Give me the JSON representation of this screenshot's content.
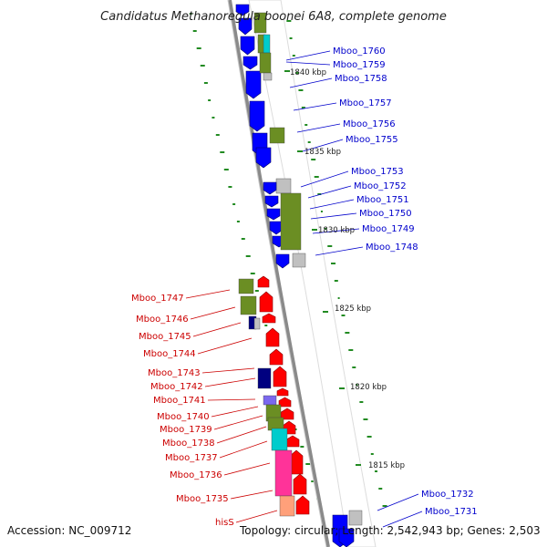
{
  "title": "Candidatus Methanoregula boonei 6A8, complete genome",
  "footer": {
    "accession": "Accession: NC_009712",
    "summary": "Topology: circular; Length: 2,542,943 bp; Genes: 2,503"
  },
  "colors": {
    "forward_cds": "#0000ff",
    "reverse_cds": "#ff0000",
    "olive_feature": "#6b8e23",
    "cyan_feature": "#00cccc",
    "pink_feature": "#ff3399",
    "gray_feature": "#c0c0c0",
    "navy_feature": "#000080",
    "gc_skew_dash": "#228b22",
    "backbone": "#888888"
  },
  "kbp_markers": [
    "1840 kbp",
    "1835 kbp",
    "1830 kbp",
    "1825 kbp",
    "1820 kbp",
    "1815 kbp"
  ],
  "forward_genes": [
    "Mboo_1760",
    "Mboo_1759",
    "Mboo_1758",
    "Mboo_1757",
    "Mboo_1756",
    "Mboo_1755",
    "Mboo_1753",
    "Mboo_1752",
    "Mboo_1751",
    "Mboo_1750",
    "Mboo_1749",
    "Mboo_1748",
    "Mboo_1732",
    "Mboo_1731"
  ],
  "reverse_genes": [
    "Mboo_1747",
    "Mboo_1746",
    "Mboo_1745",
    "Mboo_1744",
    "Mboo_1743",
    "Mboo_1742",
    "Mboo_1741",
    "Mboo_1740",
    "Mboo_1739",
    "Mboo_1738",
    "Mboo_1737",
    "Mboo_1736",
    "Mboo_1735",
    "hisS"
  ]
}
